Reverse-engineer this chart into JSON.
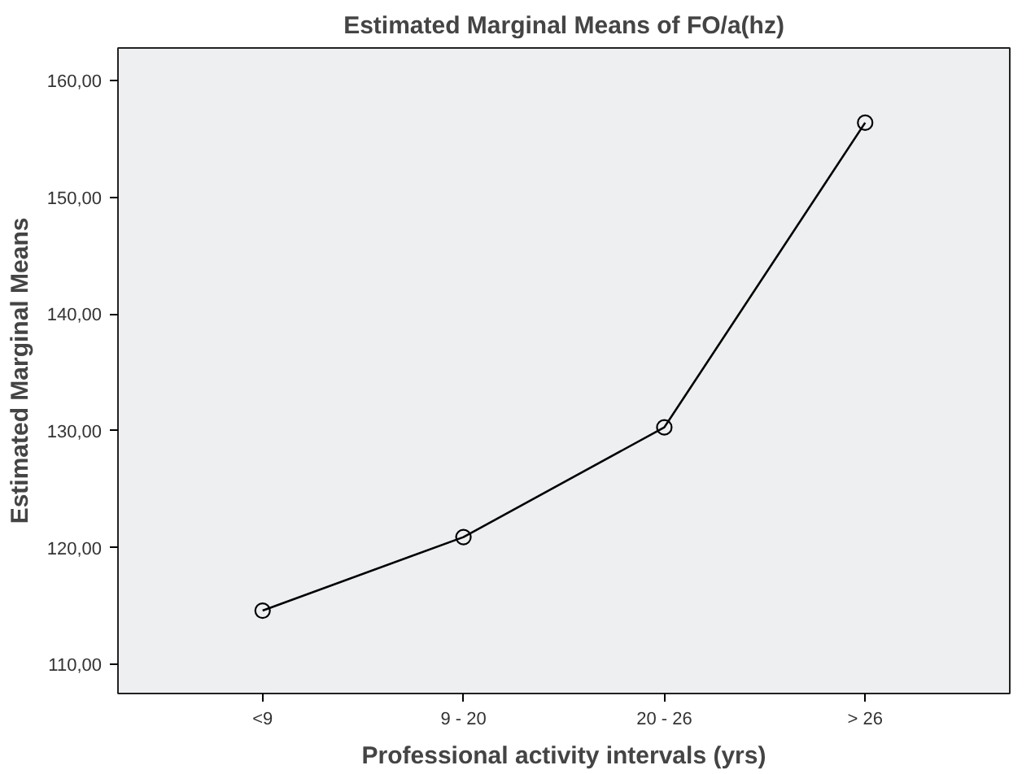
{
  "chart_data": {
    "type": "line",
    "title": "Estimated Marginal Means of FO/a(hz)",
    "xlabel": "Professional activity intervals (yrs)",
    "ylabel": "Estimated Marginal Means",
    "categories": [
      "<9",
      "9 - 20",
      "20 - 26",
      "> 26"
    ],
    "series": [
      {
        "color": "#000000",
        "values": [
          114.6,
          120.9,
          130.3,
          156.4
        ]
      }
    ],
    "ylim": [
      107.5,
      162.8
    ],
    "yticks": [
      {
        "value": 110,
        "label": "110,00"
      },
      {
        "value": 120,
        "label": "120,00"
      },
      {
        "value": 130,
        "label": "130,00"
      },
      {
        "value": 140,
        "label": "140,00"
      },
      {
        "value": 150,
        "label": "150,00"
      },
      {
        "value": 160,
        "label": "160,00"
      }
    ],
    "marker": "circle",
    "line_style": "solid",
    "grid": false
  }
}
